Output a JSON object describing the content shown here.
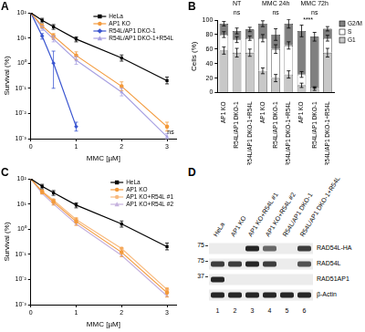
{
  "chart_data": [
    {
      "title": "A",
      "type": "line",
      "x_label": "MMC [µM]",
      "y_label": "Survival (%)",
      "log": "y",
      "x": [
        0,
        0.25,
        0.5,
        1,
        2,
        3
      ],
      "xlim": [
        0,
        3.2
      ],
      "xticks": [
        0,
        1,
        2,
        3
      ],
      "ylim": [
        0.001,
        100
      ],
      "yticks": [
        {
          "value": 0.001,
          "label": "10⁻³"
        },
        {
          "value": 0.01,
          "label": "10⁻²"
        },
        {
          "value": 0.1,
          "label": "10⁻¹"
        },
        {
          "value": 1,
          "label": "10⁰"
        },
        {
          "value": 10,
          "label": "10¹"
        },
        {
          "value": 100,
          "label": "10²"
        }
      ],
      "grid": false,
      "legend": "upper right",
      "series": [
        {
          "name": "HeLa",
          "color": "#000000",
          "marker": "square",
          "values": [
            100,
            50,
            28,
            9,
            1.6,
            0.2
          ],
          "errors": [
            null,
            [
              40,
              60
            ],
            [
              22,
              34
            ],
            [
              7,
              11
            ],
            [
              1.2,
              2.1
            ],
            [
              0.15,
              0.28
            ]
          ]
        },
        {
          "name": "AP1 KO",
          "color": "#f39a3c",
          "marker": "circle",
          "values": [
            100,
            30,
            12,
            2,
            0.12,
            0.003
          ],
          "errors": [
            null,
            [
              25,
              36
            ],
            [
              9,
              15
            ],
            [
              1.4,
              2.8
            ],
            [
              0.08,
              0.18
            ],
            [
              0.002,
              0.0045
            ]
          ]
        },
        {
          "name": "R54L/AP1 DKO-1",
          "color": "#3a55d0",
          "marker": "diamond",
          "values": [
            100,
            12,
            1,
            0.003,
            null,
            null
          ],
          "errors": [
            null,
            [
              9,
              15
            ],
            [
              0.1,
              3
            ],
            [
              0.002,
              0.0045
            ],
            null,
            null
          ]
        },
        {
          "name": "R54L/AP1 DKO-1+R54L",
          "color": "#a9a2e2",
          "marker": "triangle",
          "values": [
            100,
            25,
            9,
            1.3,
            0.07,
            0.0012
          ],
          "errors": [
            null,
            [
              20,
              30
            ],
            [
              7,
              12
            ],
            [
              0.9,
              1.8
            ],
            [
              0.05,
              0.1
            ],
            [
              0.001,
              0.0016
            ]
          ]
        }
      ],
      "annotations": [
        {
          "text": "ns",
          "x": 3.08,
          "y": 0.0018
        }
      ]
    },
    {
      "title": "B",
      "type": "bar",
      "stacked": true,
      "y_label": "Cells (%)",
      "categories": [
        "AP1 KO",
        "R54L/AP1 DKO-1",
        "R54L/AP1 DKO-1+R54L",
        "AP1 KO",
        "R54L/AP1 DKO-1",
        "R54L/AP1 DKO-1+R54L",
        "AP1 KO",
        "R54L/AP1 DKO-1",
        "R54L/AP1 DKO-1+R54L"
      ],
      "ylim": [
        0,
        100
      ],
      "yticks": [
        0,
        20,
        40,
        60,
        80,
        100
      ],
      "grid": false,
      "legend": "right",
      "series": [
        {
          "name": "G1",
          "color": "#c8c8c8",
          "values": [
            58,
            55,
            55,
            30,
            20,
            25,
            10,
            5,
            55
          ],
          "errors": [
            5,
            6,
            5,
            4,
            5,
            5,
            3,
            2,
            6
          ]
        },
        {
          "name": "S",
          "color": "#ffffff",
          "values": [
            22,
            18,
            20,
            45,
            40,
            40,
            15,
            2,
            20
          ],
          "errors": [
            4,
            4,
            3,
            5,
            6,
            5,
            4,
            1,
            4
          ]
        },
        {
          "name": "G2/M",
          "color": "#808080",
          "values": [
            15,
            12,
            12,
            20,
            20,
            30,
            60,
            70,
            13
          ],
          "errors": [
            3,
            4,
            3,
            4,
            8,
            6,
            8,
            6,
            3
          ]
        }
      ],
      "annotations": [
        {
          "text": "NT",
          "x": 1,
          "y": 122
        },
        {
          "text": "MMC 24h",
          "x": 4,
          "y": 122
        },
        {
          "text": "MMC 72h",
          "x": 7,
          "y": 122
        },
        {
          "text": "ns",
          "x": 1,
          "y": 110
        },
        {
          "text": "ns",
          "x": 4,
          "y": 110
        },
        {
          "text": "ns",
          "x": 7,
          "y": 110
        },
        {
          "text": "****",
          "x": 6.5,
          "y": 100
        }
      ]
    },
    {
      "title": "C",
      "type": "line",
      "x_label": "MMC [µM]",
      "y_label": "Survival (%)",
      "log": "y",
      "x": [
        0,
        0.25,
        0.5,
        1,
        2,
        3
      ],
      "xlim": [
        0,
        3.2
      ],
      "xticks": [
        0,
        1,
        2,
        3
      ],
      "ylim": [
        0.001,
        100
      ],
      "yticks": [
        {
          "value": 0.001,
          "label": "10⁻³"
        },
        {
          "value": 0.01,
          "label": "10⁻²"
        },
        {
          "value": 0.1,
          "label": "10⁻¹"
        },
        {
          "value": 1,
          "label": "10⁰"
        },
        {
          "value": 10,
          "label": "10¹"
        },
        {
          "value": 100,
          "label": "10²"
        }
      ],
      "grid": false,
      "legend": "upper right",
      "series": [
        {
          "name": "HeLa",
          "color": "#000000",
          "marker": "square",
          "values": [
            100,
            50,
            28,
            9,
            1.6,
            0.2
          ],
          "errors": [
            null,
            [
              40,
              60
            ],
            [
              22,
              34
            ],
            [
              7,
              11
            ],
            [
              1.2,
              2.1
            ],
            [
              0.15,
              0.28
            ]
          ]
        },
        {
          "name": "AP1 KO",
          "color": "#f39a3c",
          "marker": "circle",
          "values": [
            100,
            30,
            12,
            2,
            0.12,
            0.003
          ],
          "errors": [
            null,
            [
              25,
              36
            ],
            [
              9,
              15
            ],
            [
              1.4,
              2.8
            ],
            [
              0.08,
              0.18
            ],
            [
              0.002,
              0.0045
            ]
          ]
        },
        {
          "name": "AP1 KO+R54L #1",
          "color": "#f8bb80",
          "marker": "circle",
          "values": [
            100,
            32,
            14,
            2.4,
            0.17,
            0.004
          ]
        },
        {
          "name": "AP1 KO+R54L #2",
          "color": "#c6b2de",
          "marker": "triangle",
          "values": [
            100,
            26,
            10,
            1.6,
            0.09,
            0.0022
          ]
        }
      ]
    }
  ],
  "blot": {
    "title": "D",
    "lanes": [
      "HeLa",
      "AP1 KO",
      "AP1 KO+R54L #1",
      "AP1 KO+R54L #2",
      "R54L/AP1 DKO-1",
      "R54L/AP1 DKO-1+R54L"
    ],
    "lane_numbers": [
      1,
      2,
      3,
      4,
      5,
      6
    ],
    "rows": [
      {
        "label": "RAD54L-HA",
        "kda": 75,
        "intensity": [
          0,
          0,
          0.9,
          0.6,
          0,
          0.8
        ]
      },
      {
        "label": "RAD54L",
        "kda": 75,
        "intensity": [
          0.8,
          0.8,
          0.9,
          0.8,
          0,
          0.7
        ]
      },
      {
        "label": "RAD51AP1",
        "kda": 37,
        "intensity": [
          0.9,
          0,
          0,
          0,
          0,
          0
        ]
      },
      {
        "label": "β-Actin",
        "kda": null,
        "intensity": [
          0.9,
          0.9,
          0.9,
          0.9,
          0.9,
          0.9
        ]
      }
    ]
  }
}
